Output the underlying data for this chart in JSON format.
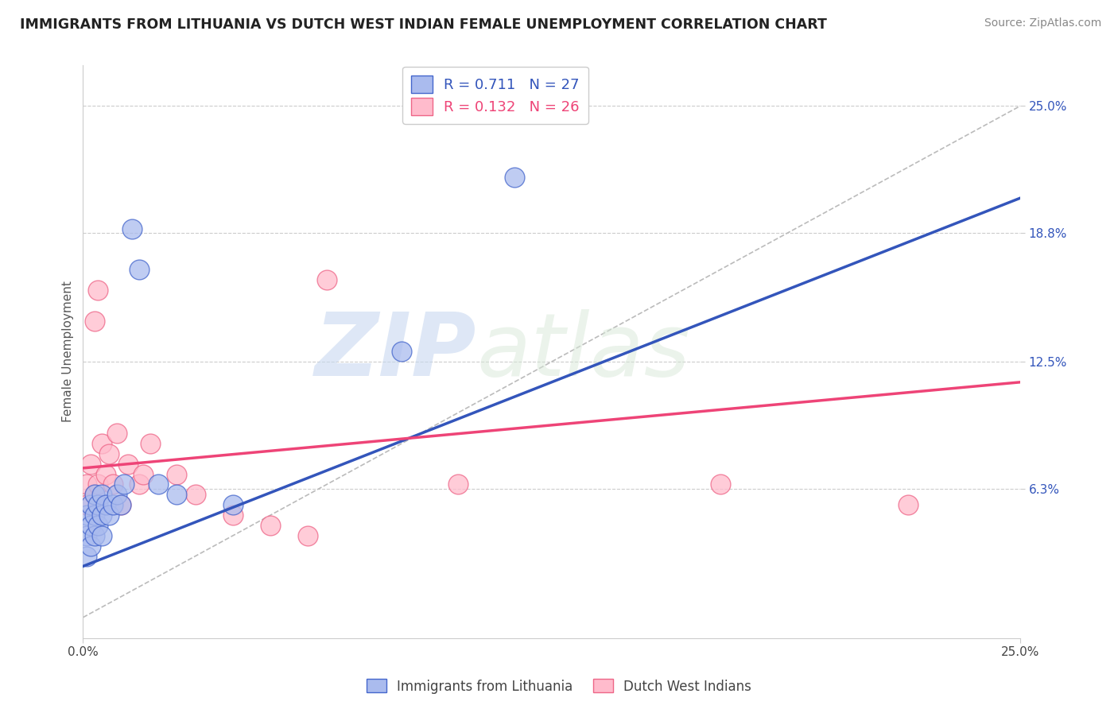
{
  "title": "IMMIGRANTS FROM LITHUANIA VS DUTCH WEST INDIAN FEMALE UNEMPLOYMENT CORRELATION CHART",
  "source": "Source: ZipAtlas.com",
  "ylabel": "Female Unemployment",
  "xlim": [
    0.0,
    0.25
  ],
  "ylim": [
    -0.01,
    0.27
  ],
  "xtick_positions": [
    0.0,
    0.25
  ],
  "xtick_labels": [
    "0.0%",
    "25.0%"
  ],
  "ytick_vals": [
    0.063,
    0.125,
    0.188,
    0.25
  ],
  "ytick_labels": [
    "6.3%",
    "12.5%",
    "18.8%",
    "25.0%"
  ],
  "grid_color": "#cccccc",
  "background_color": "#ffffff",
  "blue_fill": "#aabbee",
  "blue_edge": "#4466cc",
  "pink_fill": "#ffbbcc",
  "pink_edge": "#ee6688",
  "blue_line_color": "#3355bb",
  "pink_line_color": "#ee4477",
  "ref_line_color": "#bbbbbb",
  "legend_text1": "R = 0.711   N = 27",
  "legend_text2": "R = 0.132   N = 26",
  "legend_label1": "Immigrants from Lithuania",
  "legend_label2": "Dutch West Indians",
  "watermark_zip": "ZIP",
  "watermark_atlas": "atlas",
  "blue_x": [
    0.001,
    0.001,
    0.001,
    0.002,
    0.002,
    0.002,
    0.003,
    0.003,
    0.003,
    0.004,
    0.004,
    0.005,
    0.005,
    0.005,
    0.006,
    0.007,
    0.008,
    0.009,
    0.01,
    0.011,
    0.013,
    0.015,
    0.02,
    0.025,
    0.04,
    0.085,
    0.115
  ],
  "blue_y": [
    0.03,
    0.04,
    0.05,
    0.035,
    0.045,
    0.055,
    0.04,
    0.05,
    0.06,
    0.045,
    0.055,
    0.04,
    0.05,
    0.06,
    0.055,
    0.05,
    0.055,
    0.06,
    0.055,
    0.065,
    0.19,
    0.17,
    0.065,
    0.06,
    0.055,
    0.13,
    0.215
  ],
  "pink_x": [
    0.001,
    0.001,
    0.002,
    0.003,
    0.003,
    0.004,
    0.004,
    0.005,
    0.006,
    0.007,
    0.008,
    0.009,
    0.01,
    0.012,
    0.015,
    0.016,
    0.018,
    0.025,
    0.03,
    0.04,
    0.05,
    0.06,
    0.065,
    0.1,
    0.17,
    0.22
  ],
  "pink_y": [
    0.055,
    0.065,
    0.075,
    0.06,
    0.145,
    0.065,
    0.16,
    0.085,
    0.07,
    0.08,
    0.065,
    0.09,
    0.055,
    0.075,
    0.065,
    0.07,
    0.085,
    0.07,
    0.06,
    0.05,
    0.045,
    0.04,
    0.165,
    0.065,
    0.065,
    0.055
  ],
  "blue_trend_x": [
    0.0,
    0.25
  ],
  "blue_trend_y": [
    0.025,
    0.205
  ],
  "pink_trend_x": [
    0.0,
    0.25
  ],
  "pink_trend_y": [
    0.073,
    0.115
  ]
}
